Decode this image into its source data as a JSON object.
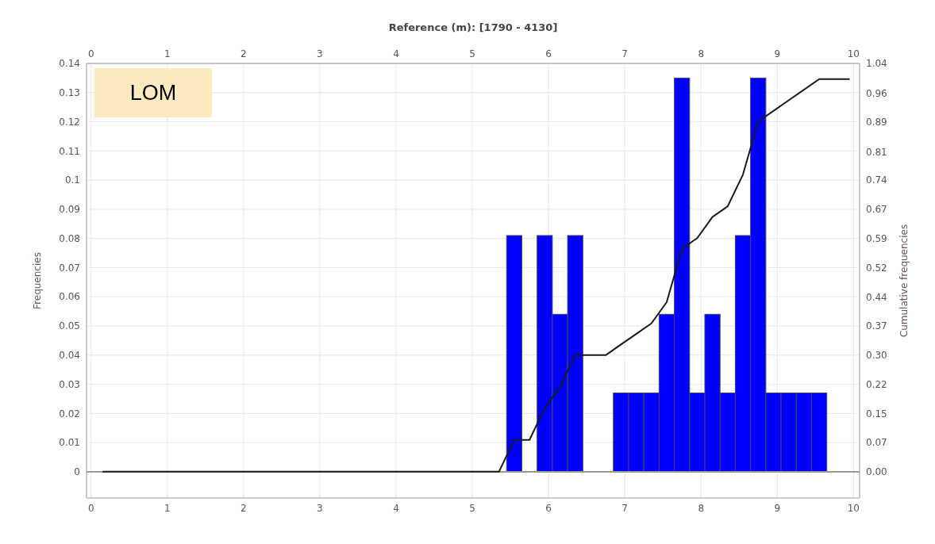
{
  "chart_data": {
    "type": "histogram",
    "x2label": "Reference (m): [1790 - 4130]",
    "ylabel": "Frequencies",
    "y2label": "Cumulative frequencies",
    "annotations": [
      "LOM"
    ],
    "bins": [
      5.45,
      5.65,
      5.85,
      6.05,
      6.25,
      6.45,
      6.65,
      6.85,
      7.05,
      7.25,
      7.45,
      7.65,
      7.85,
      8.05,
      8.25,
      8.45,
      8.65,
      8.85,
      9.05,
      9.25,
      9.45,
      9.65
    ],
    "values": [
      0.081,
      0,
      0.081,
      0.054,
      0.081,
      0,
      0,
      0.027,
      0.027,
      0.027,
      0.054,
      0.135,
      0.027,
      0.054,
      0.027,
      0.081,
      0.135,
      0.027,
      0.027,
      0.027,
      0.027
    ],
    "color": "#0000ff",
    "series": [
      {
        "type": "line",
        "axis": "y2",
        "color": "#1a1a1a",
        "x": [
          0.15,
          5.35,
          5.55,
          5.75,
          5.95,
          6.15,
          6.35,
          6.55,
          6.75,
          6.95,
          7.15,
          7.35,
          7.55,
          7.75,
          7.95,
          8.15,
          8.35,
          8.55,
          8.75,
          8.95,
          9.15,
          9.35,
          9.55,
          9.95
        ],
        "values": [
          0,
          0,
          0.081,
          0.081,
          0.162,
          0.216,
          0.297,
          0.297,
          0.297,
          0.324,
          0.351,
          0.378,
          0.432,
          0.568,
          0.595,
          0.649,
          0.676,
          0.757,
          0.892,
          0.919,
          0.946,
          0.973,
          1.0,
          1.0
        ]
      }
    ],
    "xlim": [
      -0.06,
      10.08
    ],
    "xticks": [
      0,
      1,
      2,
      3,
      4,
      5,
      6,
      7,
      8,
      9,
      10
    ],
    "x2lim": [
      -0.06,
      10.08
    ],
    "x2ticks": [
      0,
      1,
      2,
      3,
      4,
      5,
      6,
      7,
      8,
      9,
      10
    ],
    "ylim": [
      -0.009,
      0.14
    ],
    "yticks": [
      0,
      0.01,
      0.02,
      0.03,
      0.04,
      0.05,
      0.06,
      0.07,
      0.08,
      0.09,
      0.1,
      0.11,
      0.12,
      0.13,
      0.14
    ],
    "y2lim": [
      -0.067,
      1.04
    ],
    "y2ticks": [
      {
        "value": 0,
        "label": "0.00"
      },
      {
        "value": 0.0743,
        "label": "0.07"
      },
      {
        "value": 0.1486,
        "label": "0.15"
      },
      {
        "value": 0.2229,
        "label": "0.22"
      },
      {
        "value": 0.2971,
        "label": "0.30"
      },
      {
        "value": 0.3714,
        "label": "0.37"
      },
      {
        "value": 0.4443,
        "label": "0.44"
      },
      {
        "value": 0.52,
        "label": "0.52"
      },
      {
        "value": 0.5943,
        "label": "0.59"
      },
      {
        "value": 0.6686,
        "label": "0.67"
      },
      {
        "value": 0.7429,
        "label": "0.74"
      },
      {
        "value": 0.8143,
        "label": "0.81"
      },
      {
        "value": 0.8914,
        "label": "0.89"
      },
      {
        "value": 0.9643,
        "label": "0.96"
      },
      {
        "value": 1.04,
        "label": "1.04"
      }
    ],
    "ref_lines": [
      {
        "axis": "y",
        "value": 0,
        "color": "#999999"
      }
    ],
    "grid": true
  }
}
